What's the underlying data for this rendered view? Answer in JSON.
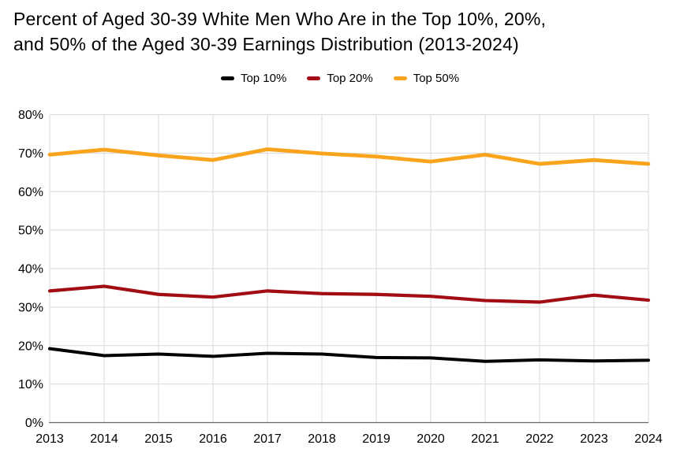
{
  "title": {
    "line1": "Percent of Aged 30-39 White Men Who Are in the Top 10%, 20%,",
    "line2": "and 50% of the Aged 30-39 Earnings Distribution (2013-2024)"
  },
  "colors": {
    "background": "#ffffff",
    "gridline": "#d9d9d9",
    "axis": "#666666",
    "text": "#000000",
    "top10": "#000000",
    "top20": "#a10d12",
    "top50": "#faa41e"
  },
  "chart_data": {
    "type": "line",
    "title": "Percent of Aged 30-39 White Men Who Are in the Top 10%, 20%, and 50% of the Aged 30-39 Earnings Distribution (2013-2024)",
    "x": [
      "2013",
      "2014",
      "2015",
      "2016",
      "2017",
      "2018",
      "2019",
      "2020",
      "2021",
      "2022",
      "2023",
      "2024"
    ],
    "series": [
      {
        "name": "Top 10%",
        "color": "#000000",
        "values": [
          19.2,
          17.4,
          17.8,
          17.2,
          18.0,
          17.8,
          16.9,
          16.8,
          15.9,
          16.3,
          16.0,
          16.2
        ]
      },
      {
        "name": "Top 20%",
        "color": "#a10d12",
        "values": [
          34.2,
          35.4,
          33.3,
          32.6,
          34.2,
          33.5,
          33.3,
          32.8,
          31.7,
          31.3,
          33.1,
          31.8
        ]
      },
      {
        "name": "Top 50%",
        "color": "#faa41e",
        "values": [
          69.6,
          70.9,
          69.4,
          68.2,
          71.0,
          69.9,
          69.1,
          67.8,
          69.6,
          67.2,
          68.2,
          67.2
        ]
      }
    ],
    "xlabel": "",
    "ylabel": "",
    "ylim": [
      0,
      80
    ],
    "ytick_values": [
      0,
      10,
      20,
      30,
      40,
      50,
      60,
      70,
      80
    ],
    "ytick_labels": [
      "0%",
      "10%",
      "20%",
      "30%",
      "40%",
      "50%",
      "60%",
      "70%",
      "80%"
    ],
    "grid": true,
    "legend_position": "top"
  }
}
